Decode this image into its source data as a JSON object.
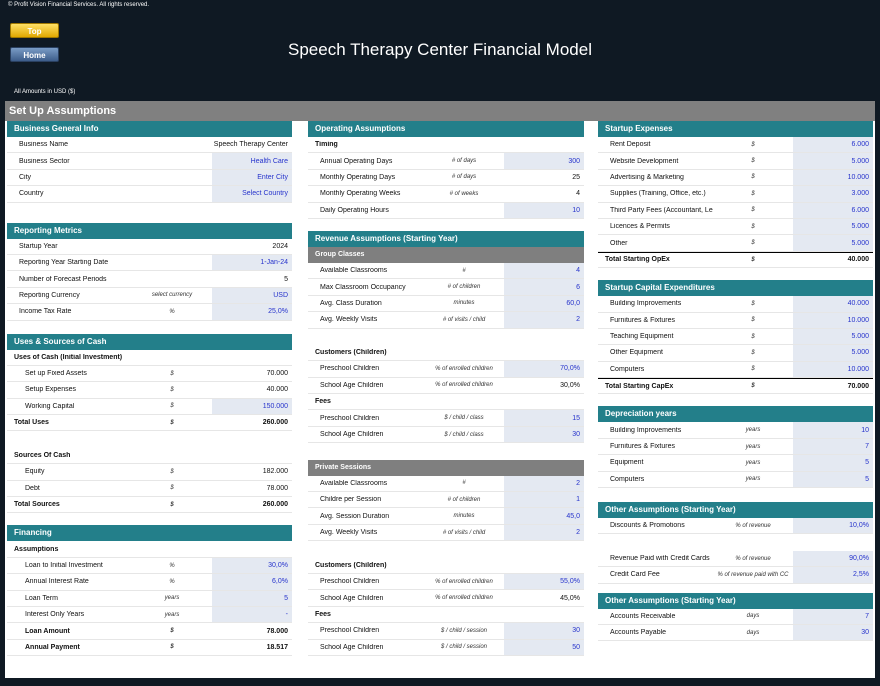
{
  "copyright": "© Profit Vision Financial Services. All rights reserved.",
  "nav": {
    "top": "Top",
    "home": "Home"
  },
  "title": "Speech Therapy Center Financial Model",
  "amounts": "All Amounts in  USD ($)",
  "setup": "Set Up Assumptions",
  "business": {
    "head": "Business General Info",
    "rows": [
      {
        "label": "Business Name",
        "unit": "",
        "value": "Speech Therapy Center",
        "input": false
      },
      {
        "label": "Business Sector",
        "unit": "",
        "value": "Health Care",
        "input": true
      },
      {
        "label": "City",
        "unit": "",
        "value": "Enter City",
        "input": true
      },
      {
        "label": "Country",
        "unit": "",
        "value": "Select Country",
        "input": true
      }
    ]
  },
  "reporting": {
    "head": "Reporting Metrics",
    "rows": [
      {
        "label": "Startup Year",
        "unit": "",
        "value": "2024",
        "input": false
      },
      {
        "label": "Reporting Year Starting Date",
        "unit": "",
        "value": "1-Jan-24",
        "input": true
      },
      {
        "label": "Number of Forecast Periods",
        "unit": "",
        "value": "5",
        "input": false
      },
      {
        "label": "Reporting Currency",
        "unit": "select currency",
        "value": "USD",
        "input": true
      },
      {
        "label": "Income Tax Rate",
        "unit": "%",
        "value": "25,0%",
        "input": true
      }
    ]
  },
  "uses": {
    "head": "Uses & Sources of Cash",
    "uses_title": "Uses of Cash (Initial Investment)",
    "uses_rows": [
      {
        "label": "Set up Fixed Assets",
        "unit": "$",
        "value": "70.000",
        "input": false
      },
      {
        "label": "Setup Expenses",
        "unit": "$",
        "value": "40.000",
        "input": false
      },
      {
        "label": "Working Capital",
        "unit": "$",
        "value": "150.000",
        "input": true
      }
    ],
    "total_uses": {
      "label": "Total Uses",
      "unit": "$",
      "value": "260.000"
    },
    "sources_title": "Sources Of Cash",
    "sources_rows": [
      {
        "label": "Equity",
        "unit": "$",
        "value": "182.000",
        "input": false
      },
      {
        "label": "Debt",
        "unit": "$",
        "value": "78.000",
        "input": false
      }
    ],
    "total_sources": {
      "label": "Total Sources",
      "unit": "$",
      "value": "260.000"
    }
  },
  "financing": {
    "head": "Financing",
    "title": "Assumptions",
    "rows": [
      {
        "label": "Loan to Initial Investment",
        "unit": "%",
        "value": "30,0%",
        "input": true
      },
      {
        "label": "Annual Interest Rate",
        "unit": "%",
        "value": "6,0%",
        "input": true
      },
      {
        "label": "Loan Term",
        "unit": "years",
        "value": "5",
        "input": true
      },
      {
        "label": "Interest Only Years",
        "unit": "years",
        "value": "-",
        "input": true
      }
    ],
    "bold_rows": [
      {
        "label": "Loan Amount",
        "unit": "$",
        "value": "78.000"
      },
      {
        "label": "Annual Payment",
        "unit": "$",
        "value": "18.517"
      }
    ]
  },
  "operating": {
    "head": "Operating Assumptions",
    "title": "Timing",
    "rows": [
      {
        "label": "Annual Operating Days",
        "unit": "# of days",
        "value": "300",
        "input": true
      },
      {
        "label": "Monthly Operating Days",
        "unit": "# of days",
        "value": "25",
        "input": false
      },
      {
        "label": "Monthly Operating Weeks",
        "unit": "# of weeks",
        "value": "4",
        "input": false
      },
      {
        "label": "Daily Operating Hours",
        "unit": "",
        "value": "10",
        "input": true
      }
    ]
  },
  "revenue": {
    "head": "Revenue Assumptions (Starting Year)",
    "group": {
      "head": "Group Classes",
      "rows": [
        {
          "label": "Available Classrooms",
          "unit": "#",
          "value": "4",
          "input": true
        },
        {
          "label": "Max Classroom Occupancy",
          "unit": "# of children",
          "value": "6",
          "input": true
        },
        {
          "label": "Avg. Class Duration",
          "unit": "minutes",
          "value": "60,0",
          "input": true
        },
        {
          "label": "Avg. Weekly Visits",
          "unit": "# of visits / child",
          "value": "2",
          "input": true
        }
      ],
      "customers_title": "Customers (Children)",
      "customers": [
        {
          "label": "Preschool Children",
          "unit": "% of enrolled children",
          "value": "70,0%",
          "input": true
        },
        {
          "label": "School Age Children",
          "unit": "% of enrolled children",
          "value": "30,0%",
          "input": false
        }
      ],
      "fees_title": "Fees",
      "fees": [
        {
          "label": "Preschool Children",
          "unit": "$ / child / class",
          "value": "15",
          "input": true
        },
        {
          "label": "School Age Children",
          "unit": "$ / child / class",
          "value": "30",
          "input": true
        }
      ]
    },
    "private": {
      "head": "Private Sessions",
      "rows": [
        {
          "label": "Available Classrooms",
          "unit": "#",
          "value": "2",
          "input": true
        },
        {
          "label": "Childre per Session",
          "unit": "# of children",
          "value": "1",
          "input": true
        },
        {
          "label": "Avg. Session Duration",
          "unit": "minutes",
          "value": "45,0",
          "input": true
        },
        {
          "label": "Avg. Weekly Visits",
          "unit": "# of visits / child",
          "value": "2",
          "input": true
        }
      ],
      "customers_title": "Customers (Children)",
      "customers": [
        {
          "label": "Preschool Children",
          "unit": "% of enrolled children",
          "value": "55,0%",
          "input": true
        },
        {
          "label": "School Age Children",
          "unit": "% of enrolled children",
          "value": "45,0%",
          "input": false
        }
      ],
      "fees_title": "Fees",
      "fees": [
        {
          "label": "Preschool Children",
          "unit": "$ / child / session",
          "value": "30",
          "input": true
        },
        {
          "label": "School Age Children",
          "unit": "$ / child / session",
          "value": "50",
          "input": true
        }
      ]
    }
  },
  "startup_exp": {
    "head": "Startup Expenses",
    "rows": [
      {
        "label": "Rent Deposit",
        "unit": "$",
        "value": "6.000",
        "input": true
      },
      {
        "label": "Website Development",
        "unit": "$",
        "value": "5.000",
        "input": true
      },
      {
        "label": "Advertising & Marketing",
        "unit": "$",
        "value": "10.000",
        "input": true
      },
      {
        "label": "Supplies (Training, Office, etc.)",
        "unit": "$",
        "value": "3.000",
        "input": true
      },
      {
        "label": "Third Party Fees (Accountant, Legal, etc.)",
        "unit": "$",
        "value": "6.000",
        "input": true
      },
      {
        "label": "Licences & Permits",
        "unit": "$",
        "value": "5.000",
        "input": true
      },
      {
        "label": "Other",
        "unit": "$",
        "value": "5.000",
        "input": true
      }
    ],
    "total": {
      "label": "Total Starting OpEx",
      "unit": "$",
      "value": "40.000"
    }
  },
  "capex": {
    "head": "Startup Capital Expenditures",
    "rows": [
      {
        "label": "Building Improvements",
        "unit": "$",
        "value": "40.000",
        "input": true
      },
      {
        "label": "Furnitures & Fixtures",
        "unit": "$",
        "value": "10.000",
        "input": true
      },
      {
        "label": "Teaching Equipment",
        "unit": "$",
        "value": "5.000",
        "input": true
      },
      {
        "label": "Other Equipment",
        "unit": "$",
        "value": "5.000",
        "input": true
      },
      {
        "label": "Computers",
        "unit": "$",
        "value": "10.000",
        "input": true
      }
    ],
    "total": {
      "label": "Total Starting CapEx",
      "unit": "$",
      "value": "70.000"
    }
  },
  "depreciation": {
    "head": "Depreciation years",
    "rows": [
      {
        "label": "Building Improvements",
        "unit": "years",
        "value": "10",
        "input": true
      },
      {
        "label": "Furnitures & Fixtures",
        "unit": "years",
        "value": "7",
        "input": true
      },
      {
        "label": "Equipment",
        "unit": "years",
        "value": "5",
        "input": true
      },
      {
        "label": "Computers",
        "unit": "years",
        "value": "5",
        "input": true
      }
    ]
  },
  "other1": {
    "head": "Other Assumptions (Starting Year)",
    "rows": [
      {
        "label": "Discounts & Promotions",
        "unit": "% of revenue",
        "value": "10,0%",
        "input": true
      }
    ],
    "rows2": [
      {
        "label": "Revenue Paid with Credit Cards",
        "unit": "% of revenue",
        "value": "90,0%",
        "input": true
      },
      {
        "label": "Credit Card Fee",
        "unit": "% of revenue paid with CC",
        "value": "2,5%",
        "input": true
      }
    ]
  },
  "other2": {
    "head": "Other Assumptions (Starting Year)",
    "rows": [
      {
        "label": "Accounts Receivable",
        "unit": "days",
        "value": "7",
        "input": true
      },
      {
        "label": "Accounts Payable",
        "unit": "days",
        "value": "30",
        "input": true
      }
    ]
  }
}
